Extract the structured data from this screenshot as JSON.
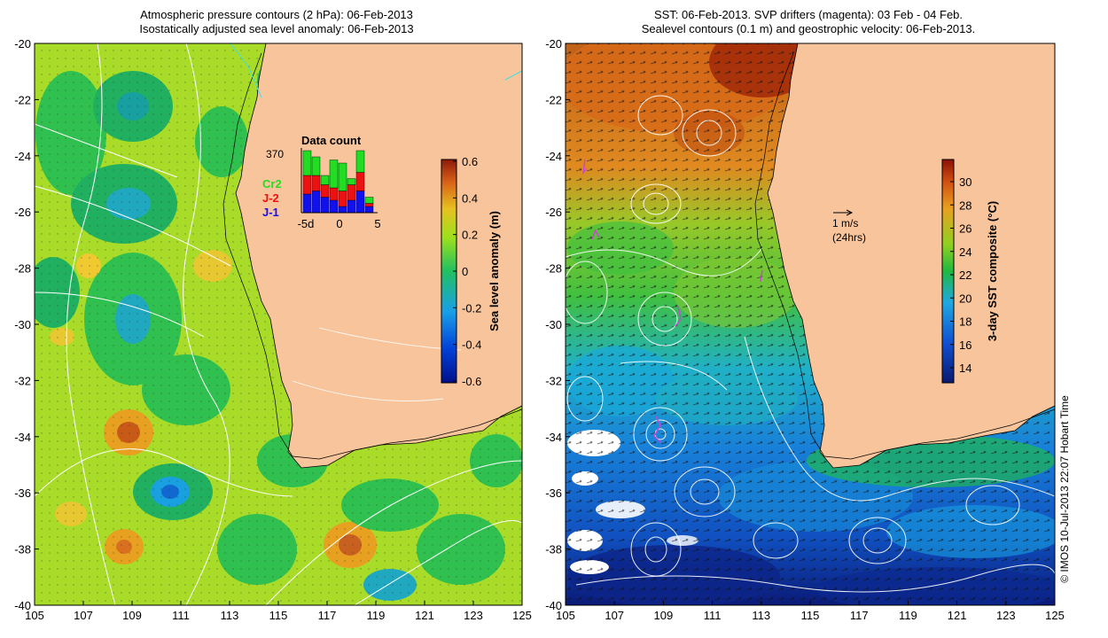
{
  "left_panel": {
    "title_line1": "Atmospheric pressure contours (2 hPa): 06-Feb-2013",
    "title_line2": "Isostatically adjusted sea level anomaly: 06-Feb-2013",
    "colorbar": {
      "label": "Sea level anomaly (m)",
      "ticks": [
        "0.6",
        "0.4",
        "0.2",
        "0",
        "-0.2",
        "-0.4",
        "-0.6"
      ]
    },
    "inset": {
      "title": "Data count",
      "max_label": "370",
      "legend": [
        {
          "label": "Cr2",
          "color": "#22dd22"
        },
        {
          "label": "J-2",
          "color": "#ee1111"
        },
        {
          "label": "J-1",
          "color": "#1111ee"
        }
      ],
      "x_ticks": [
        "-5d",
        "0",
        "5"
      ],
      "bars": [
        {
          "j1": 0.3,
          "j2": 0.3,
          "cr2": 0.4
        },
        {
          "j1": 0.35,
          "j2": 0.25,
          "cr2": 0.3
        },
        {
          "j1": 0.25,
          "j2": 0.2,
          "cr2": 0.15
        },
        {
          "j1": 0.2,
          "j2": 0.2,
          "cr2": 0.45
        },
        {
          "j1": 0.1,
          "j2": 0.25,
          "cr2": 0.45
        },
        {
          "j1": 0.2,
          "j2": 0.25,
          "cr2": 0.1
        },
        {
          "j1": 0.35,
          "j2": 0.3,
          "cr2": 0.35
        },
        {
          "j1": 0.1,
          "j2": 0.05,
          "cr2": 0.1
        }
      ]
    }
  },
  "right_panel": {
    "title_line1": "SST: 06-Feb-2013. SVP drifters (magenta): 03 Feb - 04 Feb.",
    "title_line2": "Sealevel contours (0.1 m) and geostrophic velocity: 06-Feb-2013.",
    "colorbar": {
      "label": "3-day SST composite (°C)",
      "ticks": [
        "30",
        "28",
        "26",
        "24",
        "22",
        "20",
        "18",
        "16",
        "14"
      ]
    },
    "arrow_label_line1": "1 m/s",
    "arrow_label_line2": "(24hrs)"
  },
  "axes": {
    "y_ticks": [
      "-20",
      "-22",
      "-24",
      "-26",
      "-28",
      "-30",
      "-32",
      "-34",
      "-36",
      "-38",
      "-40"
    ],
    "x_ticks": [
      "105",
      "107",
      "109",
      "111",
      "113",
      "115",
      "117",
      "119",
      "121",
      "123",
      "125"
    ]
  },
  "credit": "© IMOS 10-Jul-2013 22:07 Hobart Time",
  "colors": {
    "land": "#f8c49c",
    "sla_scale": [
      "#00108a",
      "#0040d8",
      "#18a0e8",
      "#20c060",
      "#9ce01c",
      "#e8c020",
      "#d86018",
      "#8c1a0a"
    ],
    "sst_scale": [
      "#0a1a70",
      "#1050d0",
      "#20a8e0",
      "#20b840",
      "#90d020",
      "#e8a020",
      "#d05010",
      "#8a1006"
    ]
  }
}
